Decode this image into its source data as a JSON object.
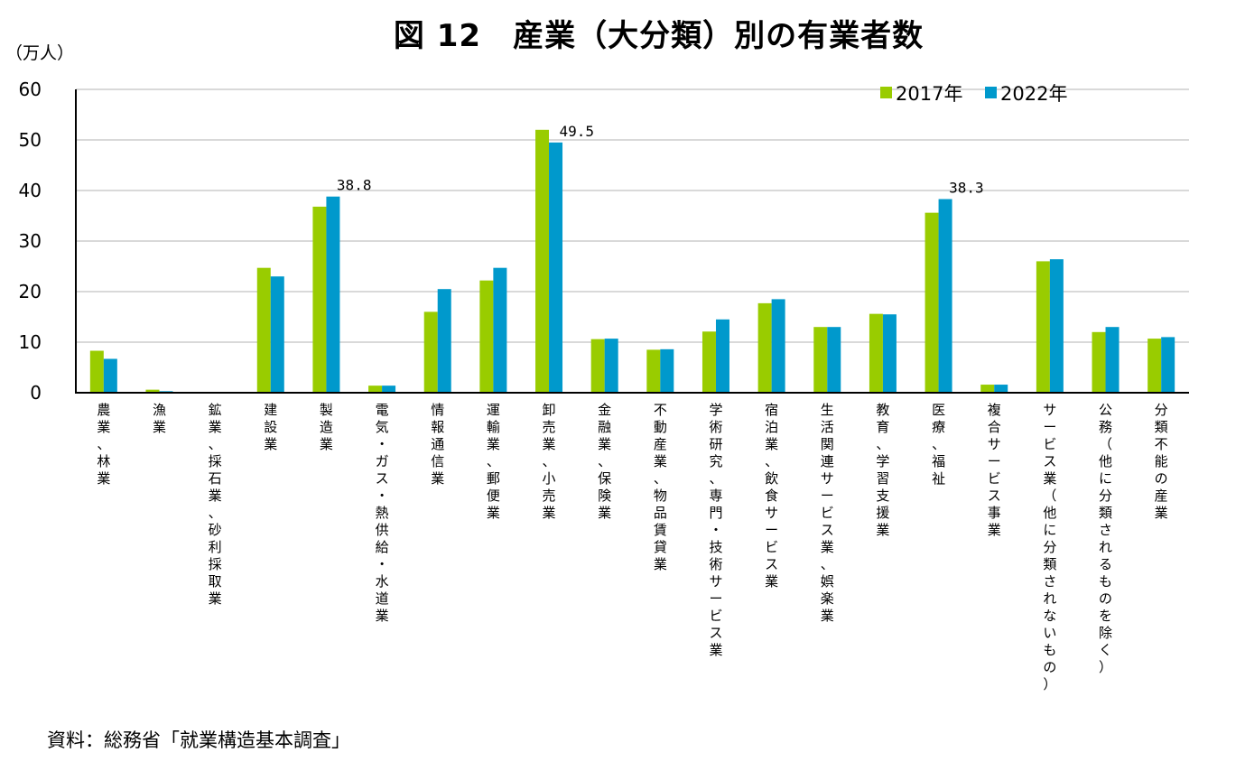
{
  "chart_data": {
    "type": "bar",
    "title": "図 12　産業（大分類）別の有業者数",
    "unit_label": "（万人）",
    "source": "資料：総務省「就業構造基本調査」",
    "categories": [
      "農業、林業",
      "漁業",
      "鉱業、採石業、砂利採取業",
      "建設業",
      "製造業",
      "電気・ガス・熱供給・水道業",
      "情報通信業",
      "運輸業、郵便業",
      "卸売業、小売業",
      "金融業、保険業",
      "不動産業、物品賃貸業",
      "学術研究、専門・技術サービス業",
      "宿泊業、飲食サービス業",
      "生活関連サービス業、娯楽業",
      "教育、学習支援業",
      "医療、福祉",
      "複合サービス事業",
      "サービス業（他に分類されないもの）",
      "公務（他に分類されるものを除く）",
      "分類不能の産業"
    ],
    "series": [
      {
        "name": "2017年",
        "color": "#99cc00",
        "values": [
          8.3,
          0.6,
          0.0,
          24.7,
          36.8,
          1.4,
          16.0,
          22.2,
          52.0,
          10.6,
          8.5,
          12.1,
          17.7,
          13.0,
          15.6,
          35.6,
          1.6,
          26.0,
          12.0,
          10.7
        ]
      },
      {
        "name": "2022年",
        "color": "#0099cc",
        "values": [
          6.7,
          0.3,
          0.0,
          23.0,
          38.8,
          1.4,
          20.5,
          24.7,
          49.5,
          10.7,
          8.6,
          14.5,
          18.5,
          13.0,
          15.5,
          38.3,
          1.6,
          26.4,
          13.0,
          11.0
        ]
      }
    ],
    "data_labels": [
      {
        "category_index": 4,
        "series_index": 1,
        "text": "38.8"
      },
      {
        "category_index": 8,
        "series_index": 1,
        "text": "49.5"
      },
      {
        "category_index": 15,
        "series_index": 1,
        "text": "38.3"
      }
    ],
    "ylim": [
      0,
      60
    ],
    "yticks": [
      "0",
      "10",
      "20",
      "30",
      "40",
      "50",
      "60"
    ],
    "grid": true,
    "legend_position": "top-right",
    "xlabel": "",
    "ylabel": ""
  }
}
